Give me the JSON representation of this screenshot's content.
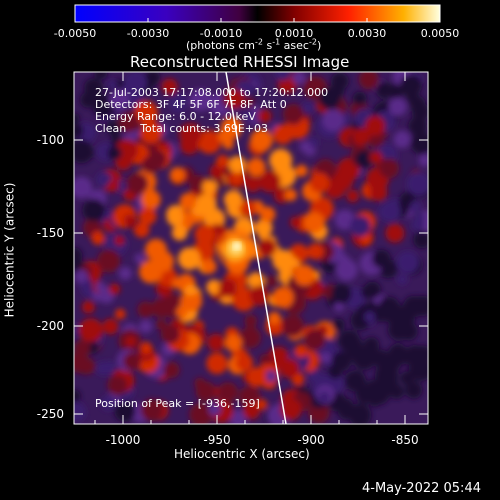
{
  "colorbar": {
    "ticks": [
      "-0.0050",
      "-0.0030",
      "-0.0010",
      "0.0010",
      "0.0030",
      "0.0050"
    ],
    "unit_prefix": "(photons cm",
    "unit_exp1": "-2",
    "unit_mid1": " s",
    "unit_exp2": "-1",
    "unit_mid2": " asec",
    "unit_exp3": "-2",
    "unit_suffix": ")"
  },
  "title": "Reconstructed RHESSI Image",
  "annotations": {
    "time_range": "27-Jul-2003 17:17:08.000 to 17:20:12.000",
    "detectors": "Detectors: 3F 4F 5F 6F 7F 8F, Att 0",
    "energy": "Energy Range: 6.0 - 12.0 keV",
    "clean": "Clean    Total counts: 3.69E+03",
    "peak": "Position of Peak = [-936,-159]"
  },
  "axes": {
    "xlabel": "Heliocentric X (arcsec)",
    "ylabel": "Heliocentric Y (arcsec)",
    "xticks": [
      "-1000",
      "-950",
      "-900",
      "-850"
    ],
    "yticks": [
      "-100",
      "-150",
      "-200",
      "-250"
    ]
  },
  "date_stamp": "4-May-2022 05:44",
  "colors": {
    "background": "#000000",
    "limb_line": "#ffffff"
  }
}
